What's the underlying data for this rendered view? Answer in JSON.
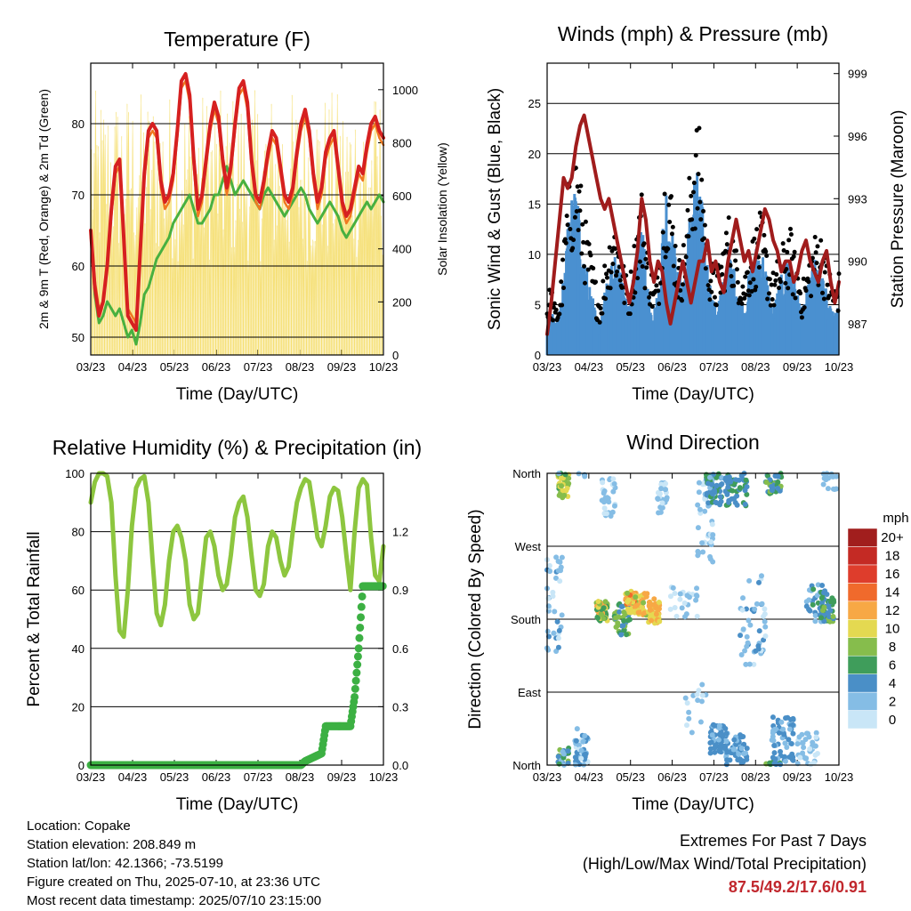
{
  "x_ticks": [
    "03/23",
    "04/23",
    "05/23",
    "06/23",
    "07/23",
    "08/23",
    "09/23",
    "10/23"
  ],
  "chart_data": [
    {
      "type": "line",
      "title": "Temperature (F)",
      "xlabel": "Time (Day/UTC)",
      "ylabel": "2m & 9m T (Red, Orange) & 2m Td (Green)",
      "ylabel_right": "Solar Insolation (Yellow)",
      "ylim": [
        47.5,
        88.5
      ],
      "ylim_right": [
        0,
        1100
      ],
      "yticks": [
        50,
        60,
        70,
        80
      ],
      "yticks_right": [
        0,
        200,
        400,
        600,
        800,
        1000
      ],
      "x_days": [
        0,
        3,
        6,
        9,
        12,
        15,
        18,
        21,
        24,
        27,
        30,
        33,
        36,
        39,
        42,
        45,
        48,
        51,
        54,
        57,
        60,
        63,
        66,
        69,
        72,
        75,
        78,
        81,
        84,
        87,
        90,
        93,
        96,
        99,
        102,
        105,
        108,
        111,
        114,
        117,
        120,
        123,
        126,
        129,
        132,
        135,
        138,
        141,
        144,
        147,
        150,
        153,
        156,
        159,
        162,
        165,
        168,
        171,
        174,
        177,
        180,
        183,
        186,
        189,
        192,
        195,
        198,
        201,
        204,
        207,
        210,
        213
      ],
      "series": [
        {
          "color": "#d62020",
          "values": [
            65,
            57,
            53,
            55,
            60,
            68,
            74,
            75,
            64,
            53,
            52,
            51,
            62,
            73,
            79,
            80,
            79,
            72,
            69,
            70,
            73,
            79,
            86,
            87,
            84,
            75,
            68,
            70,
            75,
            80,
            83,
            81,
            75,
            71,
            74,
            80,
            85,
            86,
            83,
            75,
            70,
            69,
            72,
            76,
            79,
            78,
            74,
            70,
            69,
            71,
            76,
            80,
            82,
            79,
            73,
            69,
            71,
            76,
            78,
            79,
            74,
            69,
            67,
            68,
            71,
            74,
            73,
            77,
            80,
            81,
            79,
            78
          ]
        },
        {
          "color": "#f07820",
          "values": [
            64,
            58,
            54,
            55,
            61,
            67,
            73,
            74,
            63,
            54,
            53,
            52,
            61,
            72,
            78,
            79,
            78,
            71,
            68,
            69,
            72,
            78,
            85,
            86,
            83,
            74,
            67,
            69,
            74,
            79,
            82,
            80,
            74,
            70,
            73,
            79,
            84,
            85,
            82,
            74,
            69,
            68,
            71,
            75,
            78,
            77,
            73,
            69,
            68,
            70,
            75,
            79,
            81,
            78,
            72,
            68,
            70,
            75,
            77,
            78,
            73,
            68,
            66,
            67,
            70,
            73,
            72,
            76,
            79,
            80,
            78,
            77
          ]
        },
        {
          "color": "#48b040",
          "values": [
            65,
            56,
            52,
            53,
            55,
            54,
            53,
            54,
            52,
            50,
            51,
            49,
            52,
            56,
            57,
            59,
            61,
            62,
            63,
            64,
            66,
            67,
            68,
            69,
            70,
            68,
            66,
            66,
            67,
            68,
            70,
            70,
            72,
            74,
            72,
            70,
            71,
            72,
            71,
            70,
            69,
            68,
            70,
            71,
            70,
            69,
            68,
            67,
            68,
            69,
            70,
            71,
            70,
            68,
            67,
            66,
            67,
            68,
            69,
            68,
            67,
            65,
            64,
            65,
            66,
            67,
            68,
            69,
            68,
            69,
            70,
            69
          ]
        }
      ]
    },
    {
      "type": "scatter",
      "title": "Winds (mph) & Pressure (mb)",
      "xlabel": "Time (Day/UTC)",
      "ylabel": "Sonic Wind & Gust (Blue, Black)",
      "ylabel_right": "Station Pressure (Maroon)",
      "ylim": [
        0,
        29
      ],
      "ylim_right": [
        985.5,
        999.5
      ],
      "yticks": [
        0,
        5,
        10,
        15,
        20,
        25
      ],
      "yticks_right": [
        987,
        990,
        993,
        996,
        999
      ],
      "x_days": [
        0,
        3,
        6,
        9,
        12,
        15,
        18,
        21,
        24,
        27,
        30,
        33,
        36,
        39,
        42,
        45,
        48,
        51,
        54,
        57,
        60,
        63,
        66,
        69,
        72,
        75,
        78,
        81,
        84,
        87,
        90,
        93,
        96,
        99,
        102,
        105,
        108,
        111,
        114,
        117,
        120,
        123,
        126,
        129,
        132,
        135,
        138,
        141,
        144,
        147,
        150,
        153,
        156,
        159,
        162,
        165,
        168,
        171,
        174,
        177,
        180,
        183,
        186,
        189,
        192,
        195,
        198,
        201,
        204,
        207,
        210,
        213
      ],
      "series": [
        {
          "name": "Gust",
          "color": "#000000",
          "values": [
            5,
            6,
            4,
            5,
            9,
            14,
            16,
            18,
            15,
            12,
            10,
            8,
            6,
            5,
            8,
            10,
            12,
            11,
            9,
            7,
            6,
            9,
            12,
            14,
            10,
            8,
            6,
            7,
            13,
            17,
            15,
            11,
            8,
            9,
            12,
            17,
            20,
            19,
            15,
            10,
            8,
            7,
            8,
            10,
            12,
            11,
            9,
            8,
            7,
            9,
            10,
            11,
            12,
            10,
            8,
            7,
            8,
            9,
            10,
            11,
            9,
            8,
            6,
            7,
            9,
            10,
            11,
            10,
            8,
            7,
            6,
            7
          ]
        },
        {
          "name": "Wind",
          "color": "#4a90d0",
          "values": [
            2,
            3,
            2,
            3,
            5,
            8,
            10,
            11,
            9,
            7,
            5,
            4,
            3,
            2,
            4,
            5,
            7,
            6,
            5,
            4,
            3,
            5,
            7,
            9,
            6,
            4,
            3,
            4,
            8,
            11,
            9,
            7,
            5,
            5,
            7,
            10,
            12,
            11,
            9,
            6,
            4,
            3,
            4,
            5,
            7,
            6,
            5,
            4,
            3,
            5,
            6,
            7,
            7,
            6,
            4,
            3,
            4,
            5,
            6,
            7,
            5,
            4,
            3,
            4,
            5,
            6,
            6,
            5,
            4,
            3,
            3,
            4
          ]
        },
        {
          "name": "Pressure",
          "color": "#a01c1c",
          "values": [
            986.5,
            988,
            990,
            992,
            994,
            993.5,
            994,
            995.5,
            996.5,
            997,
            996,
            995,
            994,
            993,
            992.5,
            993,
            992,
            991,
            990,
            989,
            988,
            989,
            990.5,
            993,
            992,
            990,
            989,
            990,
            989.5,
            988,
            987,
            988,
            989,
            990,
            989,
            988,
            989,
            990,
            990,
            991,
            989.5,
            990,
            989,
            988.5,
            990,
            991,
            992,
            991,
            990,
            990.5,
            989.5,
            990.5,
            991.5,
            992.5,
            992,
            991,
            990.5,
            989.5,
            990,
            990,
            989,
            989.5,
            990.5,
            991,
            990,
            989.5,
            989,
            990,
            990.5,
            989,
            988,
            989
          ]
        }
      ]
    },
    {
      "type": "line",
      "title": "Relative Humidity (%) & Precipitation (in)",
      "xlabel": "Time (Day/UTC)",
      "ylabel": "Percent & Total Rainfall",
      "ylim": [
        0,
        100
      ],
      "ylim_right": [
        0,
        1.5
      ],
      "yticks": [
        0,
        20,
        40,
        60,
        80,
        100
      ],
      "yticks_right": [
        0.0,
        0.3,
        0.6,
        0.9,
        1.2
      ],
      "x_days": [
        0,
        3,
        6,
        9,
        12,
        15,
        18,
        21,
        24,
        27,
        30,
        33,
        36,
        39,
        42,
        45,
        48,
        51,
        54,
        57,
        60,
        63,
        66,
        69,
        72,
        75,
        78,
        81,
        84,
        87,
        90,
        93,
        96,
        99,
        102,
        105,
        108,
        111,
        114,
        117,
        120,
        123,
        126,
        129,
        132,
        135,
        138,
        141,
        144,
        147,
        150,
        153,
        156,
        159,
        162,
        165,
        168,
        171,
        174,
        177,
        180,
        183,
        186,
        189,
        192,
        195,
        198,
        201,
        204,
        207,
        210,
        213
      ],
      "series": [
        {
          "color": "#8dc63f",
          "values": [
            90,
            97,
            100,
            100,
            99,
            90,
            65,
            46,
            44,
            60,
            82,
            95,
            98,
            99,
            90,
            70,
            52,
            48,
            55,
            70,
            80,
            82,
            78,
            70,
            55,
            50,
            52,
            65,
            78,
            80,
            75,
            65,
            60,
            62,
            72,
            85,
            90,
            92,
            85,
            72,
            60,
            58,
            62,
            75,
            80,
            78,
            70,
            65,
            68,
            80,
            90,
            95,
            98,
            97,
            88,
            78,
            75,
            82,
            92,
            95,
            94,
            85,
            72,
            60,
            80,
            95,
            98,
            96,
            78,
            65,
            63,
            75
          ]
        },
        {
          "color": "#3cb043",
          "values": [
            0,
            0,
            0,
            0,
            0,
            0,
            0,
            0,
            0,
            0,
            0,
            0,
            0,
            0,
            0,
            0,
            0,
            0,
            0,
            0,
            0,
            0,
            0,
            0,
            0,
            0,
            0,
            0,
            0,
            0,
            0,
            0,
            0,
            0,
            0,
            0,
            0,
            0,
            0,
            0,
            0,
            0,
            0,
            0,
            0,
            0,
            0,
            0,
            0,
            0,
            0,
            0,
            0.02,
            0.03,
            0.04,
            0.05,
            0.06,
            0.2,
            0.2,
            0.2,
            0.2,
            0.2,
            0.2,
            0.2,
            0.35,
            0.6,
            0.92,
            0.92,
            0.92,
            0.92,
            0.92,
            0.92
          ]
        }
      ]
    },
    {
      "type": "scatter",
      "title": "Wind Direction",
      "xlabel": "Time (Day/UTC)",
      "ylabel": "Direction (Colored By Speed)",
      "ylim": [
        0,
        360
      ],
      "ytick_labels": [
        "North",
        "East",
        "South",
        "West",
        "North"
      ],
      "ytick_values": [
        0,
        90,
        180,
        270,
        360
      ],
      "colorbar": {
        "title": "mph",
        "labels": [
          "0",
          "2",
          "4",
          "6",
          "8",
          "10",
          "12",
          "14",
          "16",
          "18",
          "20+"
        ],
        "colors": [
          "#c9e6f7",
          "#85bde5",
          "#4a8fc7",
          "#3f9d5b",
          "#86bd4c",
          "#e4d951",
          "#f7a845",
          "#f06a2c",
          "#de3d2c",
          "#c42a24",
          "#a11e1d"
        ]
      },
      "speed_note": "points colored by wind speed in mph"
    }
  ],
  "info": {
    "location": "Location: Copake",
    "elevation": "Station elevation: 208.849 m",
    "latlon": "Station lat/lon: 42.1366; -73.5199",
    "created": "Figure created on Thu, 2025-07-10, at 23:36 UTC",
    "recent": "Most recent data timestamp: 2025/07/10 23:15:00"
  },
  "extremes": {
    "title": "Extremes For Past 7 Days",
    "subtitle": "(High/Low/Max Wind/Total Precipitation)",
    "values": "87.5/49.2/17.6/0.91"
  }
}
